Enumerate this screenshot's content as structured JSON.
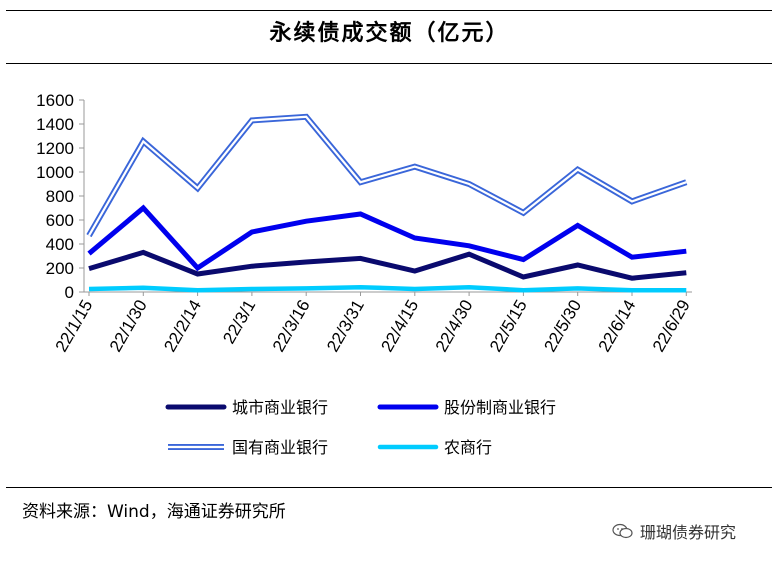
{
  "title": "永续债成交额（亿元）",
  "source": "资料来源：Wind，海通证券研究所",
  "watermark": "珊瑚债券研究",
  "watermark_icon": "wechat-icon",
  "chart_data": {
    "type": "line",
    "title": "永续债成交额（亿元）",
    "xlabel": "",
    "ylabel": "",
    "ylim": [
      0,
      1600
    ],
    "yticks": [
      0,
      200,
      400,
      600,
      800,
      1000,
      1200,
      1400,
      1600
    ],
    "categories": [
      "22/1/15",
      "22/1/30",
      "22/2/14",
      "22/3/1",
      "22/3/16",
      "22/3/31",
      "22/4/15",
      "22/4/30",
      "22/5/15",
      "22/5/30",
      "22/6/14",
      "22/6/29"
    ],
    "grid": false,
    "legend_position": "bottom",
    "series": [
      {
        "name": "城市商业银行",
        "color": "#0a0a6e",
        "style": "solid-thick",
        "values": [
          195,
          330,
          150,
          215,
          250,
          280,
          175,
          315,
          125,
          225,
          115,
          160
        ]
      },
      {
        "name": "股份制商业银行",
        "color": "#0000ee",
        "style": "solid-thick",
        "values": [
          320,
          700,
          200,
          500,
          590,
          650,
          450,
          385,
          270,
          555,
          290,
          340
        ]
      },
      {
        "name": "国有商业银行",
        "color": "#3a66d9",
        "style": "double",
        "values": [
          470,
          1255,
          865,
          1430,
          1460,
          915,
          1045,
          900,
          660,
          1020,
          755,
          915
        ]
      },
      {
        "name": "农商行",
        "color": "#00ccff",
        "style": "solid",
        "values": [
          25,
          35,
          15,
          25,
          30,
          40,
          25,
          40,
          15,
          30,
          15,
          15
        ]
      }
    ]
  }
}
